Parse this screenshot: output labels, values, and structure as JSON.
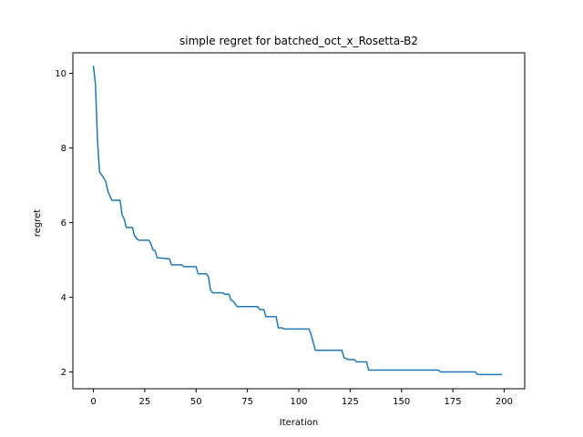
{
  "chart_data": {
    "type": "line",
    "title": "simple regret for batched_oct_x_Rosetta-B2",
    "xlabel": "Iteration",
    "ylabel": "regret",
    "xlim": [
      -10,
      210
    ],
    "ylim": [
      1.55,
      10.55
    ],
    "xticks": [
      0,
      25,
      50,
      75,
      100,
      125,
      150,
      175,
      200
    ],
    "yticks": [
      2,
      4,
      6,
      8,
      10
    ],
    "grid": false,
    "legend": "none",
    "series": [
      {
        "color": "#1f77b4",
        "points": [
          [
            0,
            10.2
          ],
          [
            1,
            9.7
          ],
          [
            2,
            8.2
          ],
          [
            3,
            7.35
          ],
          [
            4,
            7.28
          ],
          [
            5,
            7.2
          ],
          [
            6,
            7.1
          ],
          [
            7,
            6.85
          ],
          [
            8,
            6.72
          ],
          [
            9,
            6.6
          ],
          [
            13,
            6.6
          ],
          [
            14,
            6.2
          ],
          [
            15,
            6.1
          ],
          [
            16,
            5.87
          ],
          [
            19,
            5.87
          ],
          [
            20,
            5.65
          ],
          [
            21,
            5.58
          ],
          [
            22,
            5.53
          ],
          [
            27,
            5.53
          ],
          [
            28,
            5.43
          ],
          [
            29,
            5.27
          ],
          [
            30,
            5.25
          ],
          [
            31,
            5.06
          ],
          [
            35,
            5.04
          ],
          [
            37,
            5.03
          ],
          [
            38,
            4.87
          ],
          [
            43,
            4.87
          ],
          [
            44,
            4.82
          ],
          [
            50,
            4.82
          ],
          [
            51,
            4.63
          ],
          [
            55,
            4.63
          ],
          [
            56,
            4.55
          ],
          [
            57,
            4.2
          ],
          [
            58,
            4.12
          ],
          [
            63,
            4.12
          ],
          [
            64,
            4.08
          ],
          [
            66,
            4.08
          ],
          [
            67,
            3.92
          ],
          [
            68,
            3.9
          ],
          [
            70,
            3.75
          ],
          [
            80,
            3.75
          ],
          [
            81,
            3.67
          ],
          [
            83,
            3.67
          ],
          [
            84,
            3.48
          ],
          [
            89,
            3.48
          ],
          [
            90,
            3.18
          ],
          [
            92,
            3.18
          ],
          [
            93,
            3.15
          ],
          [
            105,
            3.15
          ],
          [
            106,
            3.0
          ],
          [
            107,
            2.8
          ],
          [
            108,
            2.58
          ],
          [
            121,
            2.58
          ],
          [
            122,
            2.38
          ],
          [
            123,
            2.36
          ],
          [
            124,
            2.33
          ],
          [
            127,
            2.33
          ],
          [
            128,
            2.27
          ],
          [
            133,
            2.27
          ],
          [
            134,
            2.05
          ],
          [
            168,
            2.05
          ],
          [
            169,
            2.0
          ],
          [
            186,
            2.0
          ],
          [
            187,
            1.93
          ],
          [
            199,
            1.93
          ]
        ]
      }
    ]
  }
}
